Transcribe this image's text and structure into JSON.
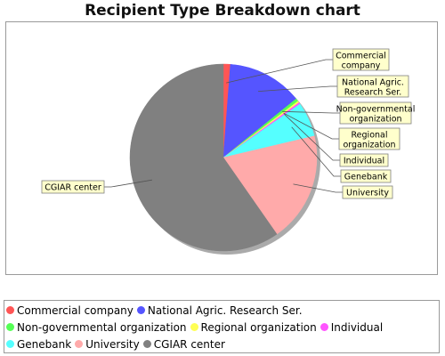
{
  "chart_data": {
    "type": "pie",
    "title": "Recipient Type Breakdown chart",
    "legend_position": "bottom",
    "slices": [
      {
        "label": "Commercial company",
        "value": 1.2,
        "color": "#ff5555"
      },
      {
        "label": "National Agric. Research Ser.",
        "value": 13.0,
        "color": "#5555ff"
      },
      {
        "label": "Non-governmental organization",
        "value": 0.5,
        "color": "#55ff55"
      },
      {
        "label": "Regional organization",
        "value": 0.3,
        "color": "#ffff55"
      },
      {
        "label": "Individual",
        "value": 0.3,
        "color": "#ff55ff"
      },
      {
        "label": "Genebank",
        "value": 6.0,
        "color": "#55ffff"
      },
      {
        "label": "University",
        "value": 19.0,
        "color": "#ffaaaa"
      },
      {
        "label": "CGIAR center",
        "value": 59.7,
        "color": "#808080"
      }
    ]
  }
}
